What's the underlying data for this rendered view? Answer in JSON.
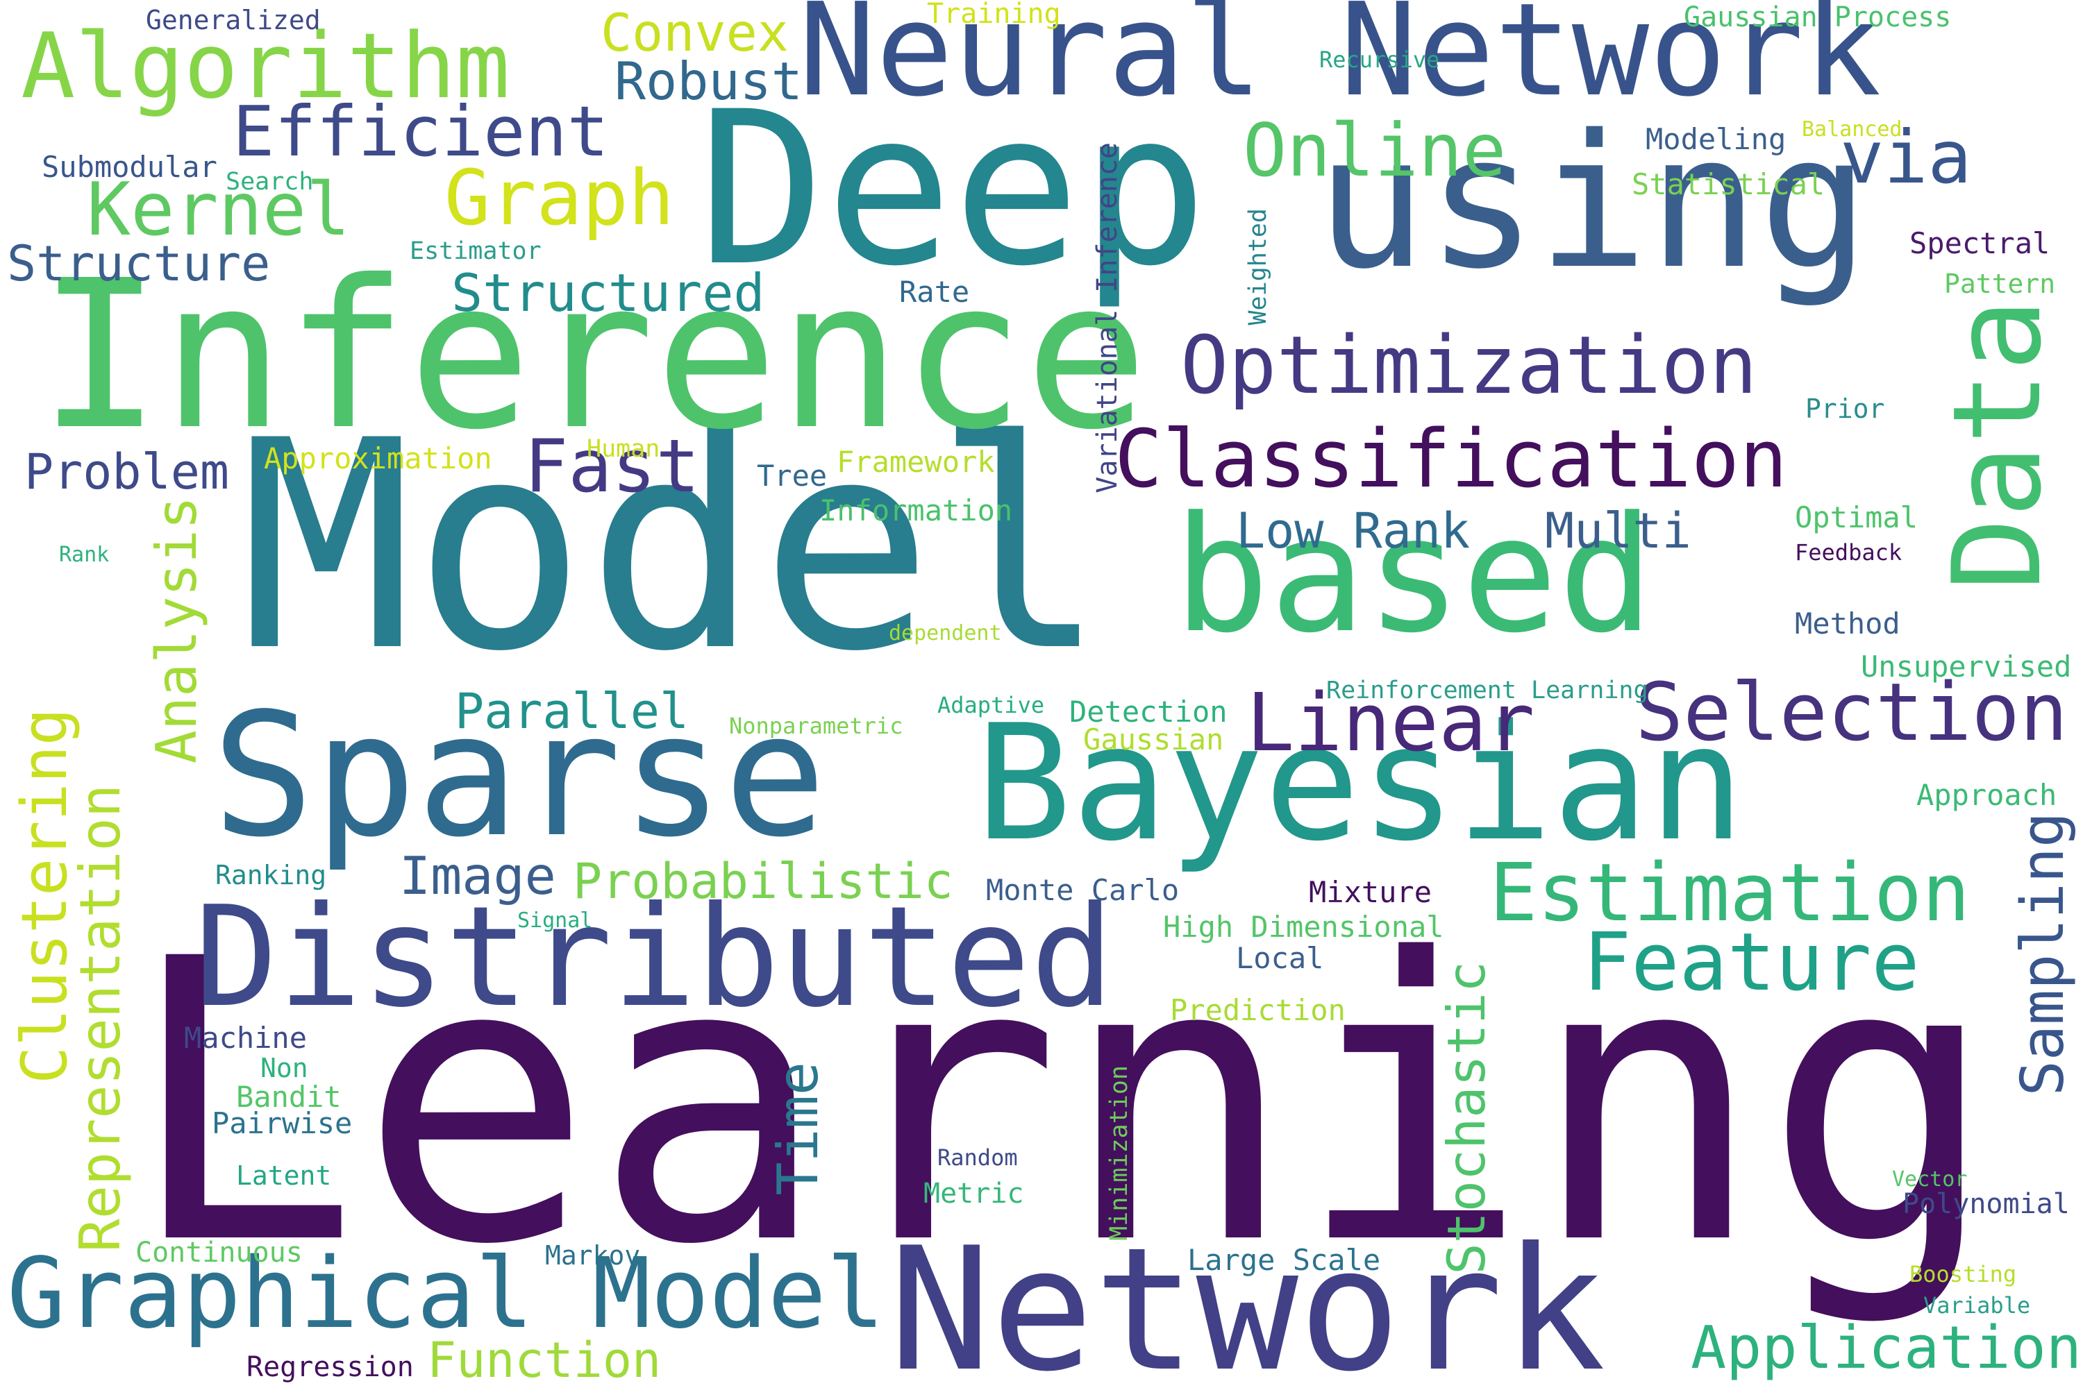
{
  "words": [
    {
      "text": "Learning",
      "color": "#440f5d",
      "vertical": false
    },
    {
      "text": "Model",
      "color": "#287d8e",
      "vertical": false
    },
    {
      "text": "Inference",
      "color": "#4ec36b",
      "vertical": false
    },
    {
      "text": "Deep",
      "color": "#24868e",
      "vertical": false
    },
    {
      "text": "Network",
      "color": "#424086",
      "vertical": false
    },
    {
      "text": "Bayesian",
      "color": "#22978b",
      "vertical": false
    },
    {
      "text": "based",
      "color": "#3bba75",
      "vertical": false
    },
    {
      "text": "using",
      "color": "#3b5f8c",
      "vertical": false
    },
    {
      "text": "Sparse",
      "color": "#2f6b8e",
      "vertical": false
    },
    {
      "text": "Neural Network",
      "color": "#38538b",
      "vertical": false
    },
    {
      "text": "Distributed",
      "color": "#3e4a89",
      "vertical": false
    },
    {
      "text": "Data",
      "color": "#42be71",
      "vertical": true
    },
    {
      "text": "Graphical Model",
      "color": "#2c728e",
      "vertical": false
    },
    {
      "text": "Classification",
      "color": "#440f5d",
      "vertical": false
    },
    {
      "text": "Optimization",
      "color": "#443a83",
      "vertical": false
    },
    {
      "text": "Algorithm",
      "color": "#86d549",
      "vertical": false
    },
    {
      "text": "Estimation",
      "color": "#35b779",
      "vertical": false
    },
    {
      "text": "Linear",
      "color": "#482878",
      "vertical": false
    },
    {
      "text": "Selection",
      "color": "#46327e",
      "vertical": false
    },
    {
      "text": "Feature",
      "color": "#1fa188",
      "vertical": false
    },
    {
      "text": "Efficient",
      "color": "#3e4a89",
      "vertical": false
    },
    {
      "text": "Graph",
      "color": "#d2e21b",
      "vertical": false
    },
    {
      "text": "Kernel",
      "color": "#5ec962",
      "vertical": false
    },
    {
      "text": "Fast",
      "color": "#443a83",
      "vertical": false
    },
    {
      "text": "Online",
      "color": "#54c568",
      "vertical": false
    },
    {
      "text": "via",
      "color": "#39568c",
      "vertical": false
    },
    {
      "text": "Analysis",
      "color": "#a2da37",
      "vertical": true
    },
    {
      "text": "Clustering",
      "color": "#c8e020",
      "vertical": true
    },
    {
      "text": "Representation",
      "color": "#b0dd2f",
      "vertical": true
    },
    {
      "text": "Sampling",
      "color": "#39568c",
      "vertical": true
    },
    {
      "text": "Stochastic",
      "color": "#4ec36b",
      "vertical": true
    },
    {
      "text": "Convex",
      "color": "#c8e020",
      "vertical": false
    },
    {
      "text": "Robust",
      "color": "#31688e",
      "vertical": false
    },
    {
      "text": "Structured",
      "color": "#228c8d",
      "vertical": false
    },
    {
      "text": "Structure",
      "color": "#3b5f8c",
      "vertical": false
    },
    {
      "text": "Problem",
      "color": "#3e4a89",
      "vertical": false
    },
    {
      "text": "Parallel",
      "color": "#21918c",
      "vertical": false
    },
    {
      "text": "Image",
      "color": "#3b5f8c",
      "vertical": false
    },
    {
      "text": "Probabilistic",
      "color": "#7ad151",
      "vertical": false
    },
    {
      "text": "Low Rank",
      "color": "#2f6b8e",
      "vertical": false
    },
    {
      "text": "Multi",
      "color": "#3b5f8c",
      "vertical": false
    },
    {
      "text": "Application",
      "color": "#2db27d",
      "vertical": false
    },
    {
      "text": "Function",
      "color": "#9fda3a",
      "vertical": false
    },
    {
      "text": "Time",
      "color": "#2a778e",
      "vertical": true
    },
    {
      "text": "Variational Inference",
      "color": "#414487",
      "vertical": true
    },
    {
      "text": "Weighted",
      "color": "#25858e",
      "vertical": true
    },
    {
      "text": "Minimization",
      "color": "#6ccd5a",
      "vertical": true
    },
    {
      "text": "Generalized",
      "color": "#3e4a89",
      "vertical": false
    },
    {
      "text": "Training",
      "color": "#d2e21b",
      "vertical": false
    },
    {
      "text": "Gaussian Process",
      "color": "#4ac16d",
      "vertical": false
    },
    {
      "text": "Recursive",
      "color": "#26a685",
      "vertical": false
    },
    {
      "text": "Modeling",
      "color": "#3b5f8c",
      "vertical": false
    },
    {
      "text": "Balanced",
      "color": "#c8e020",
      "vertical": false
    },
    {
      "text": "Statistical",
      "color": "#7ad151",
      "vertical": false
    },
    {
      "text": "Submodular",
      "color": "#39568c",
      "vertical": false
    },
    {
      "text": "Search",
      "color": "#2db27d",
      "vertical": false
    },
    {
      "text": "Estimator",
      "color": "#2a9d8b",
      "vertical": false
    },
    {
      "text": "Rate",
      "color": "#31688e",
      "vertical": false
    },
    {
      "text": "Spectral",
      "color": "#4a1a6b",
      "vertical": false
    },
    {
      "text": "Pattern",
      "color": "#5ec962",
      "vertical": false
    },
    {
      "text": "Prior",
      "color": "#2c8c8d",
      "vertical": false
    },
    {
      "text": "Approximation",
      "color": "#d2e21b",
      "vertical": false
    },
    {
      "text": "Human",
      "color": "#c8e020",
      "vertical": false
    },
    {
      "text": "Tree",
      "color": "#31688e",
      "vertical": false
    },
    {
      "text": "Framework",
      "color": "#b5de2b",
      "vertical": false
    },
    {
      "text": "Information",
      "color": "#4ac16d",
      "vertical": false
    },
    {
      "text": "Optimal",
      "color": "#4ec36b",
      "vertical": false
    },
    {
      "text": "Feedback",
      "color": "#440f5d",
      "vertical": false
    },
    {
      "text": "Rank",
      "color": "#2db27d",
      "vertical": false
    },
    {
      "text": "dependent",
      "color": "#a8db34",
      "vertical": false
    },
    {
      "text": "Method",
      "color": "#3b5f8c",
      "vertical": false
    },
    {
      "text": "Unsupervised",
      "color": "#3bba75",
      "vertical": false
    },
    {
      "text": "Adaptive",
      "color": "#27ad81",
      "vertical": false
    },
    {
      "text": "Detection",
      "color": "#2db27d",
      "vertical": false
    },
    {
      "text": "Reinforcement Learning",
      "color": "#2a9d8b",
      "vertical": false
    },
    {
      "text": "Nonparametric",
      "color": "#7ad151",
      "vertical": false
    },
    {
      "text": "Gaussian",
      "color": "#b0dd2f",
      "vertical": false
    },
    {
      "text": "Approach",
      "color": "#3bba75",
      "vertical": false
    },
    {
      "text": "Ranking",
      "color": "#228c8d",
      "vertical": false
    },
    {
      "text": "Monte Carlo",
      "color": "#3b5f8c",
      "vertical": false
    },
    {
      "text": "Mixture",
      "color": "#440f5d",
      "vertical": false
    },
    {
      "text": "Signal",
      "color": "#27ad81",
      "vertical": false
    },
    {
      "text": "High Dimensional",
      "color": "#54c568",
      "vertical": false
    },
    {
      "text": "Local",
      "color": "#3b5f8c",
      "vertical": false
    },
    {
      "text": "Prediction",
      "color": "#a8db34",
      "vertical": false
    },
    {
      "text": "Machine",
      "color": "#3e4a89",
      "vertical": false
    },
    {
      "text": "Non",
      "color": "#2db27d",
      "vertical": false
    },
    {
      "text": "Bandit",
      "color": "#54c568",
      "vertical": false
    },
    {
      "text": "Pairwise",
      "color": "#2c728e",
      "vertical": false
    },
    {
      "text": "Random",
      "color": "#3e4a89",
      "vertical": false
    },
    {
      "text": "Latent",
      "color": "#22a785",
      "vertical": false
    },
    {
      "text": "Metric",
      "color": "#35b779",
      "vertical": false
    },
    {
      "text": "Vector",
      "color": "#54c568",
      "vertical": false
    },
    {
      "text": "Polynomial",
      "color": "#3e4a89",
      "vertical": false
    },
    {
      "text": "Continuous",
      "color": "#5ec962",
      "vertical": false
    },
    {
      "text": "Markov",
      "color": "#2c728e",
      "vertical": false
    },
    {
      "text": "Large Scale",
      "color": "#2c728e",
      "vertical": false
    },
    {
      "text": "Boosting",
      "color": "#b5de2b",
      "vertical": false
    },
    {
      "text": "Variable",
      "color": "#2a9d8b",
      "vertical": false
    },
    {
      "text": "Regression",
      "color": "#440f5d",
      "vertical": false
    }
  ]
}
